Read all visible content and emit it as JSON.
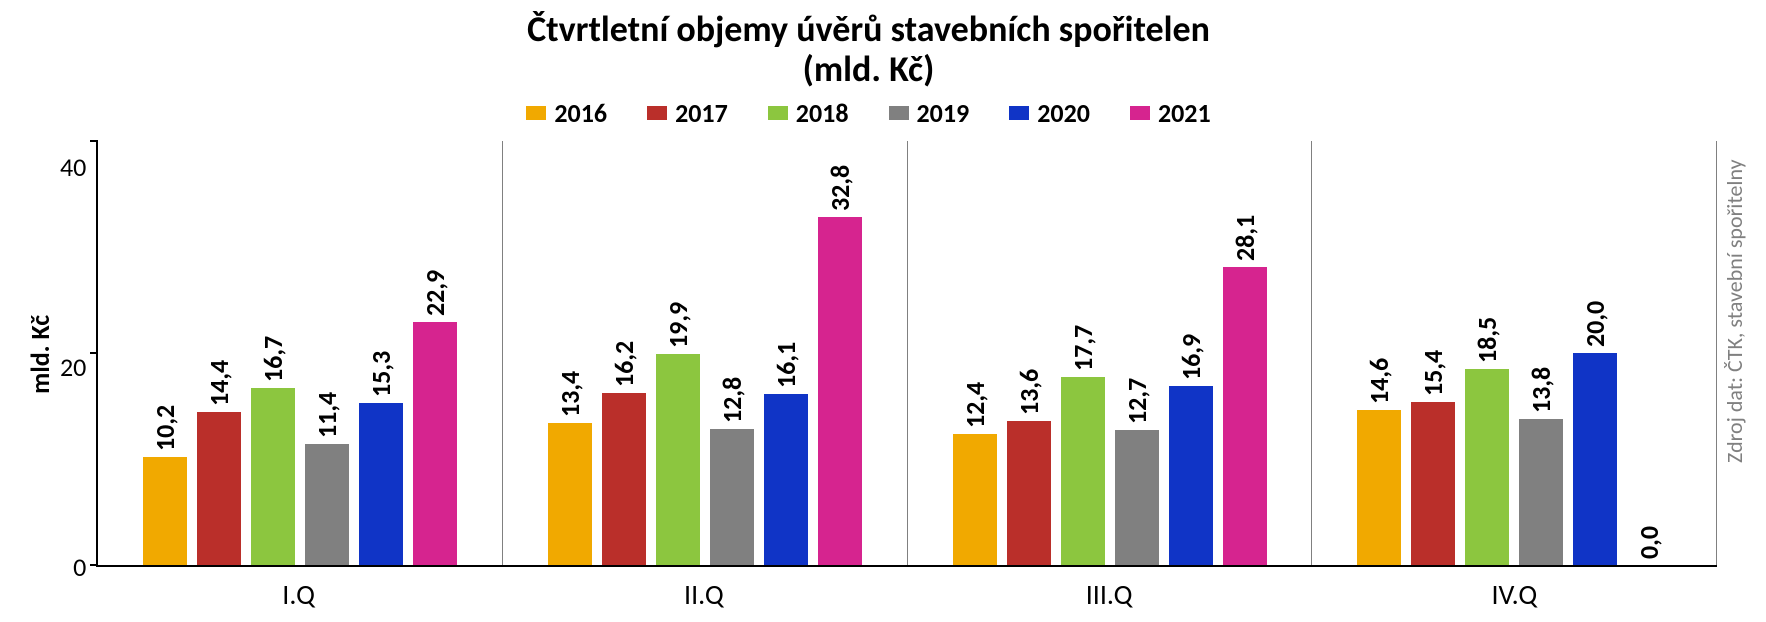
{
  "chart": {
    "type": "bar",
    "title_line1": "Čtvrtletní objemy úvěrů stavebních spořitelen",
    "title_line2": "(mld. Kč)",
    "title_fontsize": 36,
    "ylabel": "mld. Kč",
    "ylabel_fontsize": 26,
    "source": "Zdroj dat: ČTK, stavební spořitelny",
    "source_fontsize": 22,
    "source_color": "#808080",
    "background_color": "#ffffff",
    "axis_color": "#000000",
    "group_separator_color": "#808080",
    "ylim": [
      0,
      40
    ],
    "yticks": [
      0,
      20,
      40
    ],
    "ytick_fontsize": 26,
    "categories": [
      "I.Q",
      "II.Q",
      "III.Q",
      "IV.Q"
    ],
    "xcat_fontsize": 28,
    "legend_fontsize": 26,
    "bar_label_fontsize": 26,
    "series": [
      {
        "name": "2016",
        "color": "#f1a900"
      },
      {
        "name": "2017",
        "color": "#ba2f2a"
      },
      {
        "name": "2018",
        "color": "#8cc63f"
      },
      {
        "name": "2019",
        "color": "#808080"
      },
      {
        "name": "2020",
        "color": "#1034c6"
      },
      {
        "name": "2021",
        "color": "#d6248f"
      }
    ],
    "data": [
      {
        "category": "I.Q",
        "values": [
          10.2,
          14.4,
          16.7,
          11.4,
          15.3,
          22.9
        ],
        "labels": [
          "10,2",
          "14,4",
          "16,7",
          "11,4",
          "15,3",
          "22,9"
        ]
      },
      {
        "category": "II.Q",
        "values": [
          13.4,
          16.2,
          19.9,
          12.8,
          16.1,
          32.8
        ],
        "labels": [
          "13,4",
          "16,2",
          "19,9",
          "12,8",
          "16,1",
          "32,8"
        ]
      },
      {
        "category": "III.Q",
        "values": [
          12.4,
          13.6,
          17.7,
          12.7,
          16.9,
          28.1
        ],
        "labels": [
          "12,4",
          "13,6",
          "17,7",
          "12,7",
          "16,9",
          "28,1"
        ]
      },
      {
        "category": "IV.Q",
        "values": [
          14.6,
          15.4,
          18.5,
          13.8,
          20.0,
          0.0
        ],
        "labels": [
          "14,6",
          "15,4",
          "18,5",
          "13,8",
          "20,0",
          "0,0"
        ]
      }
    ]
  }
}
